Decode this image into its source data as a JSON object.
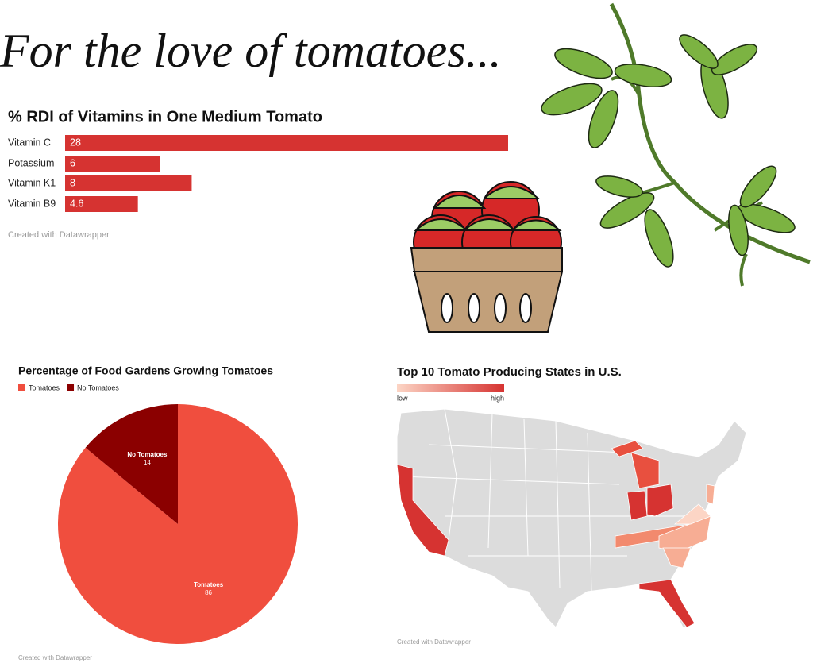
{
  "title": "For the love of tomatoes...",
  "chart_data": [
    {
      "type": "bar",
      "title": "% RDI of Vitamins in One Medium Tomato",
      "categories": [
        "Vitamin C",
        "Potassium",
        "Vitamin K1",
        "Vitamin B9"
      ],
      "values": [
        28,
        6,
        8,
        4.6
      ],
      "color": "#d63331",
      "credit": "Created with Datawrapper"
    },
    {
      "type": "pie",
      "title": "Percentage of Food Gardens Growing Tomatoes",
      "categories": [
        "Tomatoes",
        "No Tomatoes"
      ],
      "values": [
        86,
        14
      ],
      "colors": [
        "#f04e3e",
        "#8b0000"
      ],
      "legend": "top-left",
      "credit": "Created with Datawrapper"
    },
    {
      "type": "map",
      "title": "Top 10 Tomato Producing States in U.S.",
      "legend_labels": [
        "low",
        "high"
      ],
      "colors": [
        "#fcd5c5",
        "#d63331"
      ],
      "credit": "Created with Datawrapper"
    }
  ]
}
